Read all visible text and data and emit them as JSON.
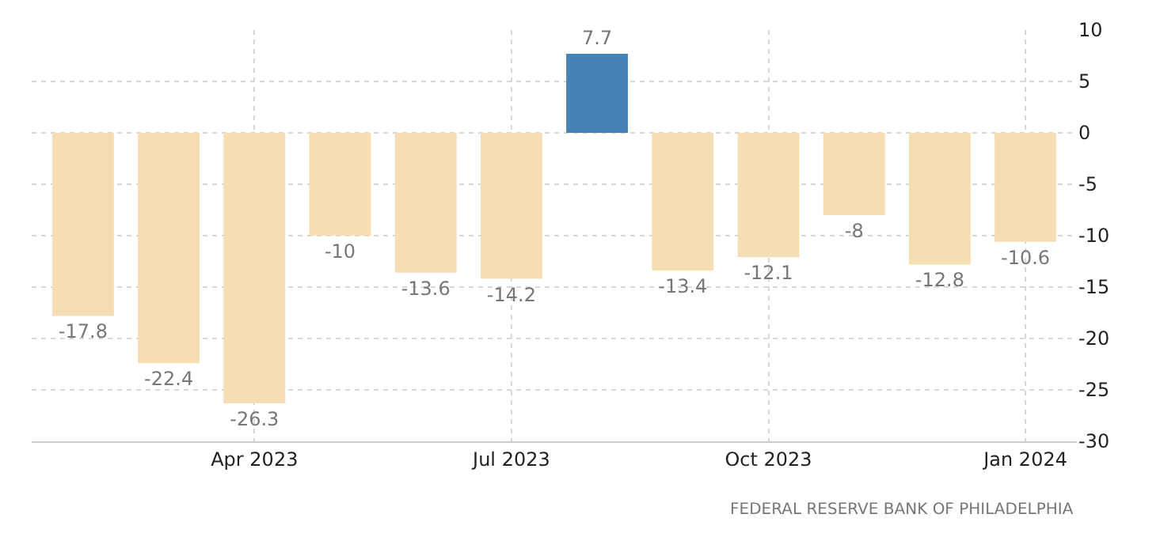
{
  "chart_data": {
    "type": "bar",
    "categories": [
      null,
      null,
      "Apr 2023",
      null,
      null,
      "Jul 2023",
      null,
      null,
      "Oct 2023",
      null,
      null,
      "Jan 2024"
    ],
    "values": [
      -17.8,
      -22.4,
      -26.3,
      -10,
      -13.6,
      -14.2,
      7.7,
      -13.4,
      -12.1,
      -8,
      -12.8,
      -10.6
    ],
    "colors": [
      "#f5deb3",
      "#f5deb3",
      "#f5deb3",
      "#f5deb3",
      "#f5deb3",
      "#f5deb3",
      "#4682b4",
      "#f5deb3",
      "#f5deb3",
      "#f5deb3",
      "#f5deb3",
      "#f5deb3"
    ],
    "ylim": [
      -30,
      10
    ],
    "yticks": [
      -30,
      -25,
      -20,
      -15,
      -10,
      -5,
      0,
      5,
      10
    ],
    "grid": true,
    "legend": false,
    "data_labels": true,
    "annotations": [
      "FEDERAL RESERVE BANK OF PHILADELPHIA"
    ]
  }
}
